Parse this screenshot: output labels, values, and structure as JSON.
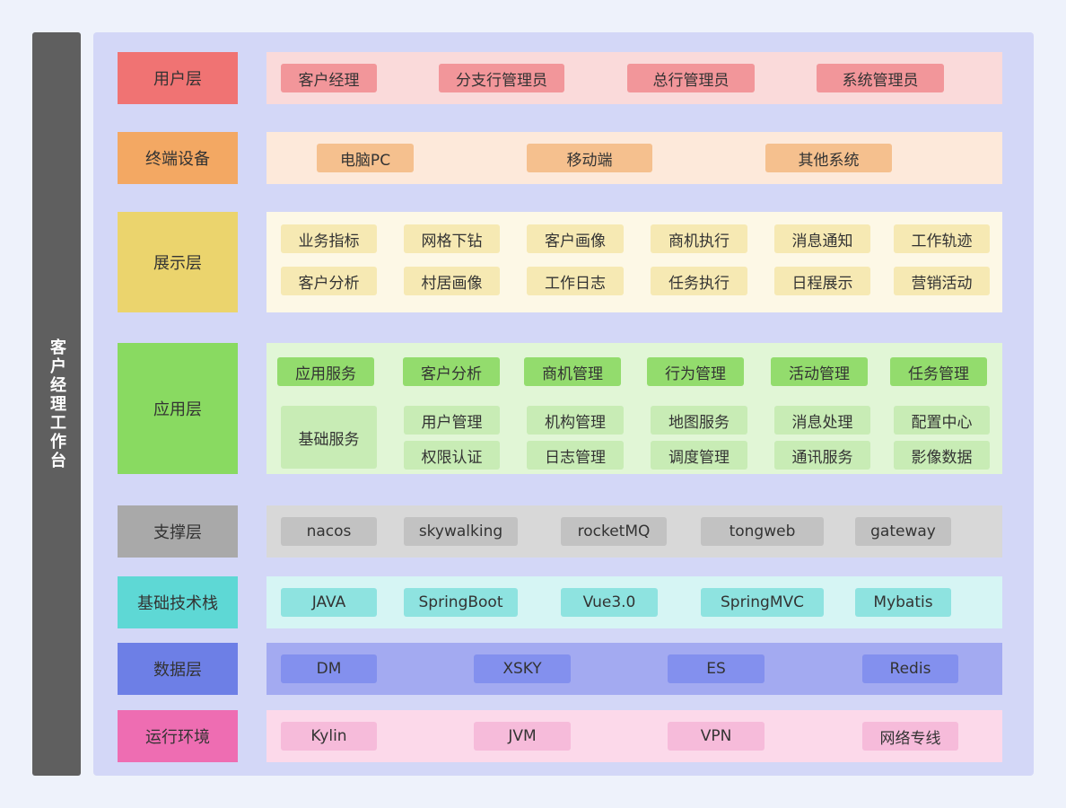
{
  "sidebar": {
    "title": "客户经理工作台"
  },
  "layers": {
    "user": {
      "label": "用户层",
      "items": [
        "客户经理",
        "分支行管理员",
        "总行管理员",
        "系统管理员"
      ]
    },
    "terminal": {
      "label": "终端设备",
      "items": [
        "电脑PC",
        "移动端",
        "其他系统"
      ]
    },
    "display": {
      "label": "展示层",
      "items": [
        "业务指标",
        "网格下钻",
        "客户画像",
        "商机执行",
        "消息通知",
        "工作轨迹",
        "客户分析",
        "村居画像",
        "工作日志",
        "任务执行",
        "日程展示",
        "营销活动"
      ]
    },
    "application": {
      "label": "应用层",
      "service_label": "应用服务",
      "service_items": [
        "客户分析",
        "商机管理",
        "行为管理",
        "活动管理",
        "任务管理"
      ],
      "base_label": "基础服务",
      "base_items": [
        "用户管理",
        "机构管理",
        "地图服务",
        "消息处理",
        "配置中心",
        "权限认证",
        "日志管理",
        "调度管理",
        "通讯服务",
        "影像数据"
      ]
    },
    "support": {
      "label": "支撑层",
      "items": [
        "nacos",
        "skywalking",
        "rocketMQ",
        "tongweb",
        "gateway"
      ]
    },
    "tech": {
      "label": "基础技术栈",
      "items": [
        "JAVA",
        "SpringBoot",
        "Vue3.0",
        "SpringMVC",
        "Mybatis"
      ]
    },
    "data": {
      "label": "数据层",
      "items": [
        "DM",
        "XSKY",
        "ES",
        "Redis"
      ]
    },
    "runtime": {
      "label": "运行环境",
      "items": [
        "Kylin",
        "JVM",
        "VPN",
        "网络专线"
      ]
    }
  },
  "colors": {
    "sidebar": "#5f5f5f",
    "frame": "#d3d7f7",
    "user": "#f07373",
    "terminal": "#f3a863",
    "display": "#ebd46d",
    "application": "#89da61",
    "support": "#a9a9a9",
    "tech": "#5ed8d5",
    "data": "#6d7fe6",
    "runtime": "#ee6db2"
  }
}
